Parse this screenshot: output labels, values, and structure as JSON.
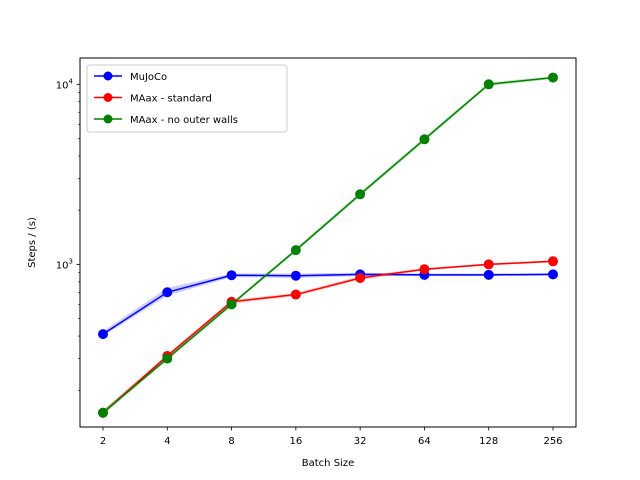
{
  "chart_data": {
    "type": "line",
    "title": "",
    "xlabel": "Batch Size",
    "ylabel": "Steps / (s)",
    "x": [
      2,
      4,
      8,
      16,
      32,
      64,
      128,
      256
    ],
    "x_tick_labels": [
      "2",
      "4",
      "8",
      "16",
      "32",
      "64",
      "128",
      "256"
    ],
    "xscale": "log2",
    "yscale": "log10",
    "ylim": [
      125,
      14000
    ],
    "y_major_ticks": [
      1000,
      10000
    ],
    "y_major_tick_labels": [
      {
        "base": "10",
        "exp": "3"
      },
      {
        "base": "10",
        "exp": "4"
      }
    ],
    "grid": false,
    "legend_position": "top-left",
    "series": [
      {
        "name": "MuJoCo",
        "color": "#0000ff",
        "values": [
          410,
          700,
          870,
          865,
          880,
          875,
          875,
          880
        ],
        "band_low": [
          400,
          670,
          850,
          840,
          860,
          860,
          860,
          865
        ],
        "band_high": [
          425,
          740,
          890,
          890,
          900,
          890,
          890,
          895
        ]
      },
      {
        "name": "MAax - standard",
        "color": "#ff0000",
        "values": [
          150,
          310,
          620,
          680,
          840,
          940,
          1000,
          1040
        ],
        "band_low": [
          146,
          302,
          605,
          665,
          820,
          925,
          985,
          1025
        ],
        "band_high": [
          155,
          318,
          635,
          695,
          860,
          955,
          1015,
          1055
        ]
      },
      {
        "name": "MAax - no outer walls",
        "color": "#008000",
        "values": [
          150,
          300,
          600,
          1200,
          2450,
          4950,
          10000,
          10900
        ],
        "band_low": [
          146,
          292,
          585,
          1170,
          2380,
          4800,
          9750,
          10700
        ],
        "band_high": [
          155,
          308,
          615,
          1230,
          2520,
          5100,
          10250,
          11100
        ]
      }
    ]
  }
}
